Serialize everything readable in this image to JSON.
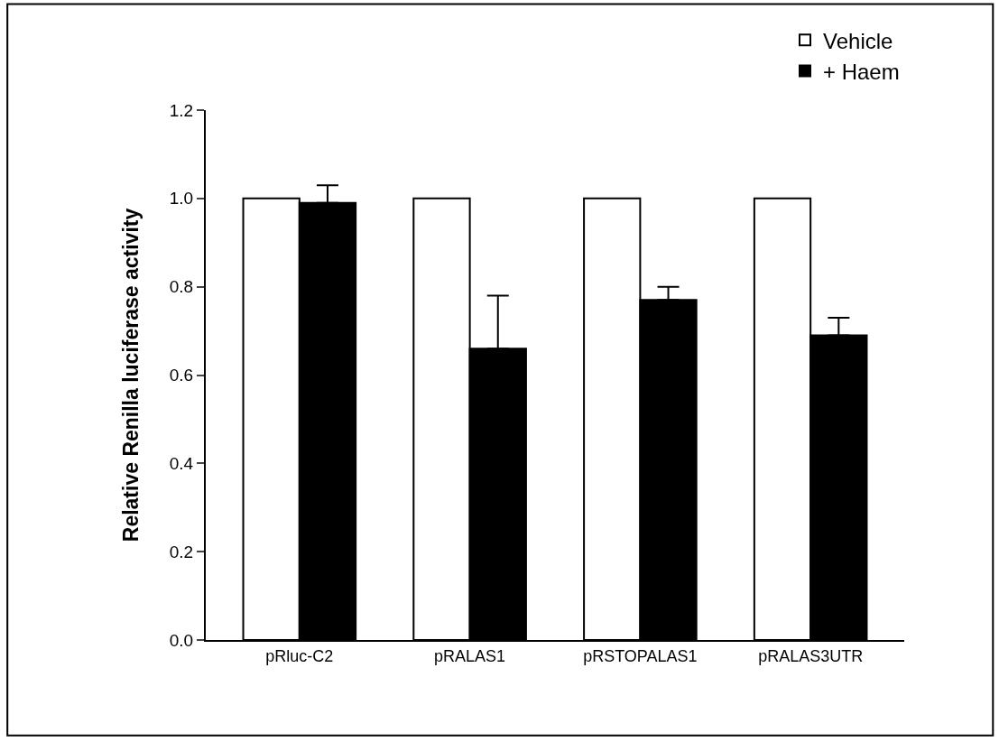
{
  "chart_data": {
    "type": "bar",
    "ylabel": "Relative Renilla luciferase activity",
    "categories": [
      "pRluc-C2",
      "pRALAS1",
      "pRSTOPALAS1",
      "pRALAS3UTR"
    ],
    "series": [
      {
        "name": "Vehicle",
        "color": "#ffffff",
        "values": [
          1.0,
          1.0,
          1.0,
          1.0
        ]
      },
      {
        "name": "+ Haem",
        "color": "#000000",
        "values": [
          0.99,
          0.66,
          0.77,
          0.69
        ],
        "errors": [
          [
            0.99,
            1.03
          ],
          [
            0.66,
            0.78
          ],
          [
            0.77,
            0.8
          ],
          [
            0.69,
            0.73
          ]
        ]
      }
    ],
    "ylim": [
      0,
      1.2
    ],
    "yticks": [
      {
        "value": 0,
        "label": "0.0"
      },
      0.2,
      0.4,
      0.6,
      0.8,
      {
        "value": 1.0,
        "label": "1.0"
      },
      1.2
    ],
    "legend": "top right"
  }
}
